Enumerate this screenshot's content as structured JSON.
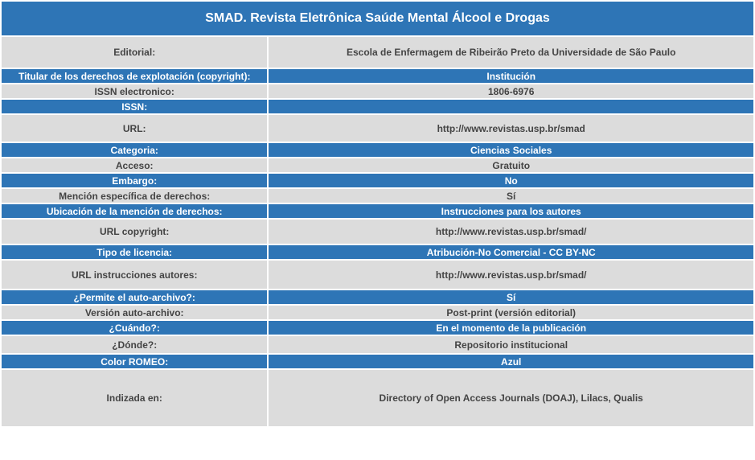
{
  "title": "SMAD. Revista Eletrônica Saúde Mental Álcool e Drogas",
  "rows": [
    {
      "label": "Editorial:",
      "value": "Escola de Enfermagem de Ribeirão Preto da Universidade de São Paulo",
      "style": "light",
      "height": 38
    },
    {
      "label": "Titular de los derechos de explotación (copyright):",
      "value": "Institución",
      "style": "blue",
      "height": 17
    },
    {
      "label": "ISSN electronico:",
      "value": "1806-6976",
      "style": "light",
      "height": 17
    },
    {
      "label": "ISSN:",
      "value": "",
      "style": "blue",
      "height": 17
    },
    {
      "label": "URL:",
      "value": "http://www.revistas.usp.br/smad",
      "style": "light",
      "height": 33
    },
    {
      "label": "Categoria:",
      "value": "Ciencias Sociales",
      "style": "blue",
      "height": 17
    },
    {
      "label": "Acceso:",
      "value": "Gratuito",
      "style": "light",
      "height": 17
    },
    {
      "label": "Embargo:",
      "value": "No",
      "style": "blue",
      "height": 17
    },
    {
      "label": "Mención específica de derechos:",
      "value": "Sí",
      "style": "light",
      "height": 17
    },
    {
      "label": "Ubicación de la mención de derechos:",
      "value": "Instrucciones para los autores",
      "style": "blue",
      "height": 17
    },
    {
      "label": "URL copyright:",
      "value": "http://www.revistas.usp.br/smad/",
      "style": "light",
      "height": 30
    },
    {
      "label": "Tipo de licencia:",
      "value": "Atribución-No Comercial - CC BY-NC",
      "style": "blue",
      "height": 17
    },
    {
      "label": "URL instrucciones autores:",
      "value": "http://www.revistas.usp.br/smad/",
      "style": "light",
      "height": 35
    },
    {
      "label": "¿Permite el auto-archivo?:",
      "value": "Sí",
      "style": "blue",
      "height": 17
    },
    {
      "label": "Versión auto-archivo:",
      "value": "Post-print (versión editorial)",
      "style": "light",
      "height": 17
    },
    {
      "label": "¿Cuándo?:",
      "value": "En el momento de la publicación",
      "style": "blue",
      "height": 17
    },
    {
      "label": "¿Dónde?:",
      "value": "Repositorio institucional",
      "style": "light",
      "height": 21
    },
    {
      "label": "Color ROMEO:",
      "value": "Azul",
      "style": "blue",
      "height": 17
    },
    {
      "label": "Indizada en:",
      "value": "Directory of Open Access Journals (DOAJ), Lilacs, Qualis",
      "style": "light",
      "height": 70
    }
  ]
}
